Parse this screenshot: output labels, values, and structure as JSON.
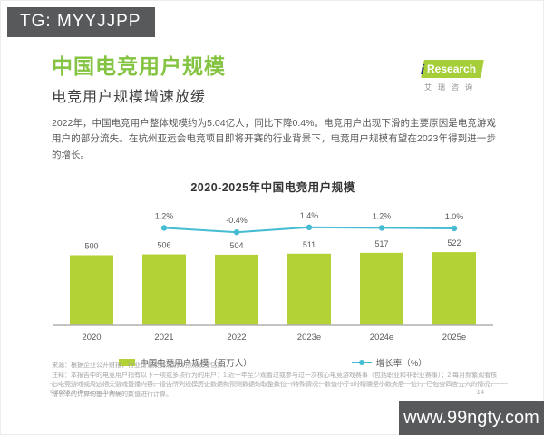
{
  "overlay": {
    "tg_label": "TG: MYYJJPP",
    "watermark_url": "www.99ngty.com"
  },
  "logo": {
    "prefix": "i",
    "brand": "Research",
    "subtext": "艾瑞咨询"
  },
  "header": {
    "title": "中国电竞用户规模",
    "subtitle": "电竞用户规模增速放缓"
  },
  "intro": "2022年，中国电竞用户整体规模约为5.04亿人，同比下降0.4%。电竞用户出现下滑的主要原因是电竞游戏用户的部分流失。在杭州亚运会电竞项目即将开赛的行业背景下，电竞用户规模有望在2023年得到进一步的增长。",
  "chart_data": {
    "type": "bar",
    "title": "2020-2025年中国电竞用户规模",
    "categories": [
      "2020",
      "2021",
      "2022",
      "2023e",
      "2024e",
      "2025e"
    ],
    "series": [
      {
        "name": "中国电竞用户规模（百万人）",
        "type": "bar",
        "color": "#b2d235",
        "values": [
          500,
          506,
          504,
          511,
          517,
          522
        ]
      },
      {
        "name": "增长率（%）",
        "type": "line",
        "color": "#45bcd2",
        "values": [
          null,
          1.2,
          -0.4,
          1.4,
          1.2,
          1.0
        ]
      }
    ],
    "value_labels": true,
    "legend_position": "bottom",
    "ylim": [
      0,
      560
    ]
  },
  "footnote": {
    "source": "来源：根据企业公开财报，行业访谈及艾瑞统计预测模型估算。",
    "note": "注释：本报告中的电竞用户指有以下一项或多项行为的用户：1.近一年至少观看过或参与过一次核心电竞游戏赛事（包括职业和非职业赛事）；2.每月频繁观看核心电竞游戏或周边相关游戏直播内容。报告所列规模历史数据和预测数据均取整数位（特殊情况：数值小于1时精确至小数点后一位），已包含四舍五入的情况，增长率的计算均基于精确的数值进行计算。",
    "copyright": "©2023.6 iResearch Inc.",
    "page_number": "14"
  }
}
